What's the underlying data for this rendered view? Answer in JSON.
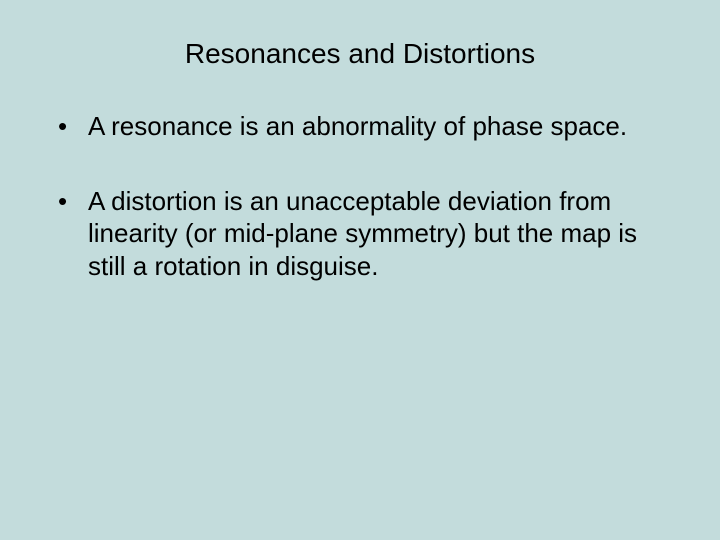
{
  "slide": {
    "background_color": "#c3dcdc",
    "text_color": "#000000",
    "font_family": "Arial",
    "title": {
      "text": "Resonances and Distortions",
      "fontsize": 28,
      "align": "center"
    },
    "bullets": {
      "fontsize": 26,
      "marker": "•",
      "items": [
        "A resonance is an abnormality of phase space.",
        "A distortion is an unacceptable deviation from linearity (or mid-plane symmetry) but the map is still a rotation in disguise."
      ]
    }
  }
}
